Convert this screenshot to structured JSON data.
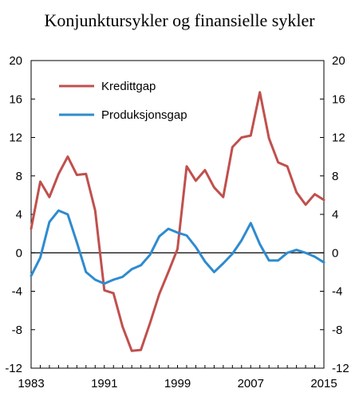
{
  "chart_data": {
    "type": "line",
    "title": "Konjunktursykler og finansielle sykler",
    "xlabel": "",
    "ylabel": "",
    "xlim": [
      1983,
      2015
    ],
    "ylim": [
      -12,
      20
    ],
    "y_ticks": [
      -12,
      -8,
      -4,
      0,
      4,
      8,
      12,
      16,
      20
    ],
    "y_tick_labels": [
      "-12",
      "-8",
      "-4",
      "0",
      "4",
      "8",
      "12",
      "16",
      "20"
    ],
    "x_ticks": [
      1983,
      1991,
      1999,
      2007,
      2015
    ],
    "x_tick_labels": [
      "1983",
      "1991",
      "1999",
      "2007",
      "2015"
    ],
    "grid": false,
    "legend_position": "top-left",
    "zero_line": true,
    "series": [
      {
        "name": "Kredittgap",
        "color": "#c0504d",
        "points": [
          [
            1983,
            2.5
          ],
          [
            1984,
            7.4
          ],
          [
            1985,
            5.8
          ],
          [
            1986,
            8.2
          ],
          [
            1987,
            10.0
          ],
          [
            1988,
            8.1
          ],
          [
            1989,
            8.2
          ],
          [
            1990,
            4.4
          ],
          [
            1991,
            -3.9
          ],
          [
            1992,
            -4.2
          ],
          [
            1993,
            -7.7
          ],
          [
            1994,
            -10.2
          ],
          [
            1995,
            -10.1
          ],
          [
            1996,
            -7.3
          ],
          [
            1997,
            -4.3
          ],
          [
            1998,
            -2.0
          ],
          [
            1999,
            0.4
          ],
          [
            2000,
            9.0
          ],
          [
            2001,
            7.5
          ],
          [
            2002,
            8.6
          ],
          [
            2003,
            6.8
          ],
          [
            2004,
            5.8
          ],
          [
            2005,
            11.0
          ],
          [
            2006,
            12.0
          ],
          [
            2007,
            12.2
          ],
          [
            2008,
            16.7
          ],
          [
            2009,
            11.9
          ],
          [
            2010,
            9.4
          ],
          [
            2011,
            9.0
          ],
          [
            2012,
            6.3
          ],
          [
            2013,
            5.0
          ],
          [
            2014,
            6.1
          ],
          [
            2015,
            5.5
          ]
        ]
      },
      {
        "name": "Produksjonsgap",
        "color": "#2e8bcf",
        "points": [
          [
            1983,
            -2.4
          ],
          [
            1984,
            -0.5
          ],
          [
            1985,
            3.2
          ],
          [
            1986,
            4.4
          ],
          [
            1987,
            4.0
          ],
          [
            1988,
            1.1
          ],
          [
            1989,
            -2.0
          ],
          [
            1990,
            -2.8
          ],
          [
            1991,
            -3.2
          ],
          [
            1992,
            -2.8
          ],
          [
            1993,
            -2.5
          ],
          [
            1994,
            -1.7
          ],
          [
            1995,
            -1.3
          ],
          [
            1996,
            -0.2
          ],
          [
            1997,
            1.7
          ],
          [
            1998,
            2.5
          ],
          [
            1999,
            2.1
          ],
          [
            2000,
            1.8
          ],
          [
            2001,
            0.6
          ],
          [
            2002,
            -0.9
          ],
          [
            2003,
            -2.0
          ],
          [
            2004,
            -1.1
          ],
          [
            2005,
            -0.1
          ],
          [
            2006,
            1.3
          ],
          [
            2007,
            3.1
          ],
          [
            2008,
            0.9
          ],
          [
            2009,
            -0.8
          ],
          [
            2010,
            -0.8
          ],
          [
            2011,
            0.0
          ],
          [
            2012,
            0.3
          ],
          [
            2013,
            0.0
          ],
          [
            2014,
            -0.4
          ],
          [
            2015,
            -1.0
          ]
        ]
      }
    ]
  }
}
